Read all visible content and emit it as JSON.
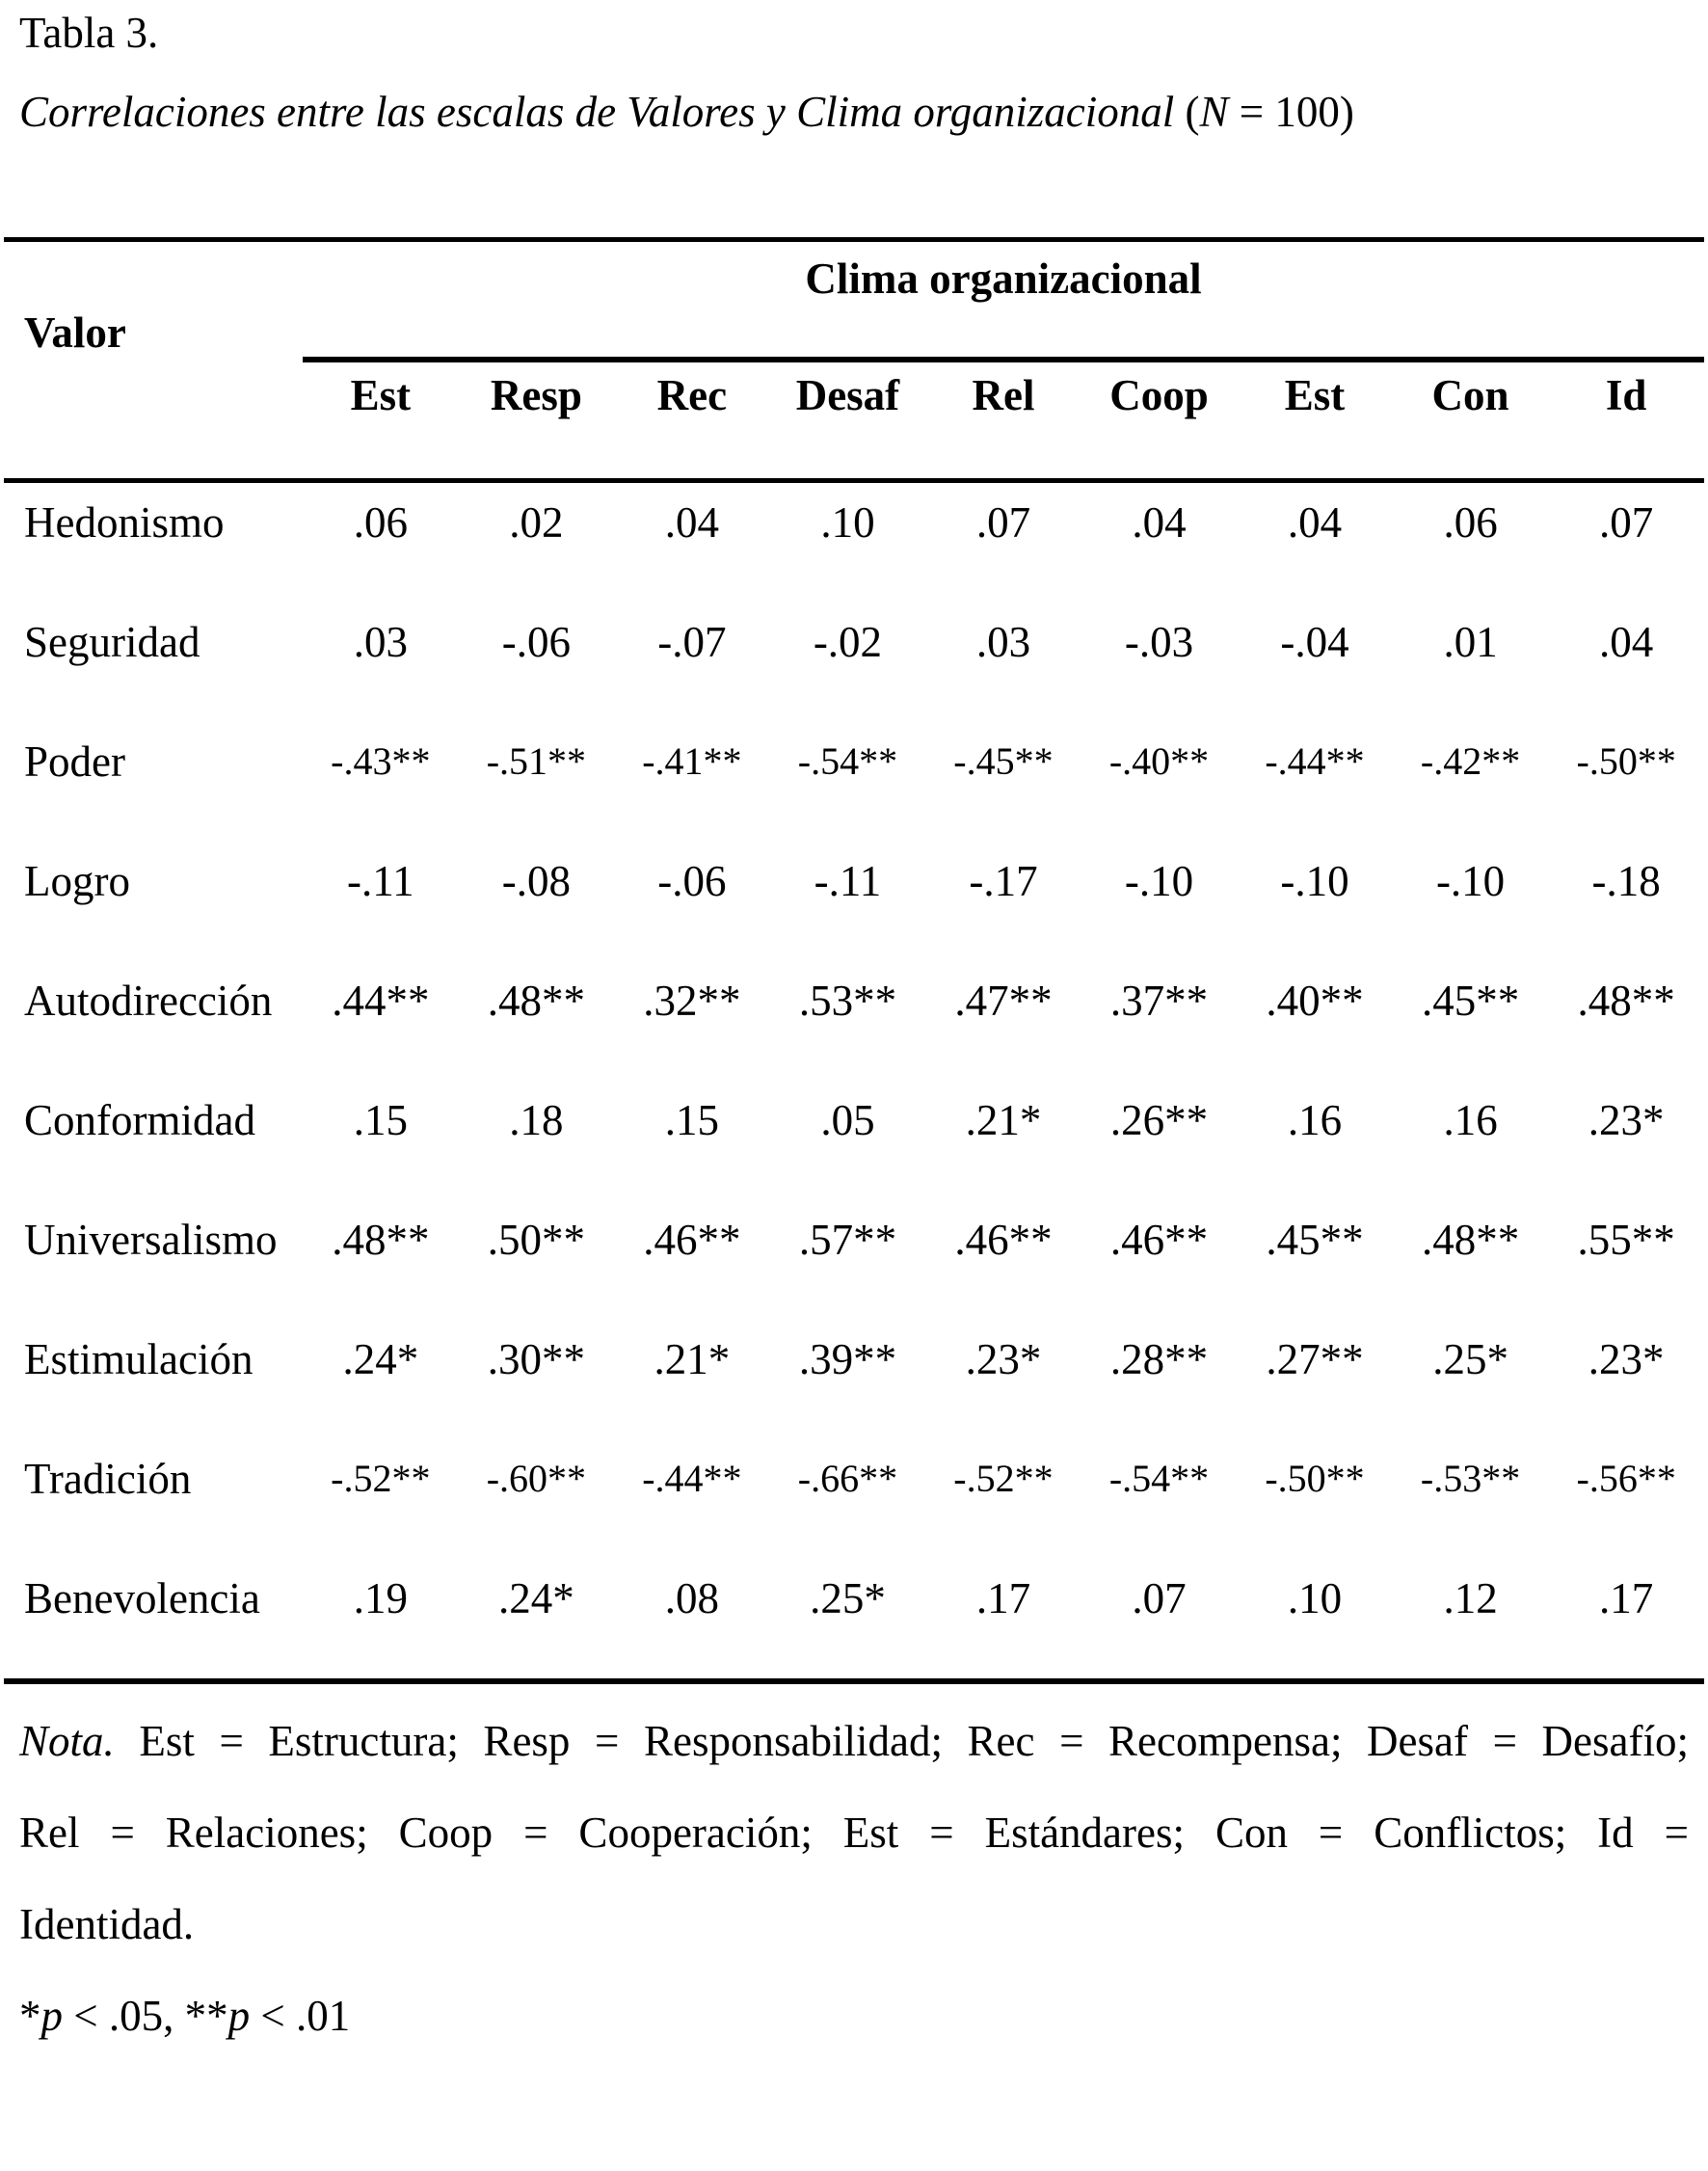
{
  "doc": {
    "label": "Tabla 3.",
    "subtitle_main": "Correlaciones entre las escalas de Valores y Clima organizacional",
    "subtitle_paren_open": " (",
    "subtitle_n": "N",
    "subtitle_paren_rest": " = 100)"
  },
  "table": {
    "spanner": "Clima organizacional",
    "stub_header": "Valor",
    "columns": [
      "Est",
      "Resp",
      "Rec",
      "Desaf",
      "Rel",
      "Coop",
      "Est",
      "Con",
      "Id"
    ],
    "rows": [
      {
        "label": "Hedonismo",
        "values": [
          ".06",
          ".02",
          ".04",
          ".10",
          ".07",
          ".04",
          ".04",
          ".06",
          ".07"
        ]
      },
      {
        "label": "Seguridad",
        "values": [
          ".03",
          "-.06",
          "-.07",
          "-.02",
          ".03",
          "-.03",
          "-.04",
          ".01",
          ".04"
        ]
      },
      {
        "label": "Poder",
        "values": [
          "-.43**",
          "-.51**",
          "-.41**",
          "-.54**",
          "-.45**",
          "-.40**",
          "-.44**",
          "-.42**",
          "-.50**"
        ]
      },
      {
        "label": "Logro",
        "values": [
          "-.11",
          "-.08",
          "-.06",
          "-.11",
          "-.17",
          "-.10",
          "-.10",
          "-.10",
          "-.18"
        ]
      },
      {
        "label": "Autodirección",
        "values": [
          ".44**",
          ".48**",
          ".32**",
          ".53**",
          ".47**",
          ".37**",
          ".40**",
          ".45**",
          ".48**"
        ]
      },
      {
        "label": "Conformidad",
        "values": [
          ".15",
          ".18",
          ".15",
          ".05",
          ".21*",
          ".26**",
          ".16",
          ".16",
          ".23*"
        ]
      },
      {
        "label": "Universalismo",
        "values": [
          ".48**",
          ".50**",
          ".46**",
          ".57**",
          ".46**",
          ".46**",
          ".45**",
          ".48**",
          ".55**"
        ]
      },
      {
        "label": "Estimulación",
        "values": [
          ".24*",
          ".30**",
          ".21*",
          ".39**",
          ".23*",
          ".28**",
          ".27**",
          ".25*",
          ".23*"
        ]
      },
      {
        "label": "Tradición",
        "values": [
          "-.52**",
          "-.60**",
          "-.44**",
          "-.66**",
          "-.52**",
          "-.54**",
          "-.50**",
          "-.53**",
          "-.56**"
        ]
      },
      {
        "label": "Benevolencia",
        "values": [
          ".19",
          ".24*",
          ".08",
          ".25*",
          ".17",
          ".07",
          ".10",
          ".12",
          ".17"
        ]
      }
    ]
  },
  "note": {
    "label": "Nota.",
    "line1": " Est = Estructura; Resp = Responsabilidad; Rec = Recompensa; Desaf = Desafío;",
    "line2": "Rel = Relaciones; Coop = Cooperación; Est = Estándares; Con = Conflictos; Id =",
    "line3": "Identidad.",
    "sig_star1": "*",
    "sig_p1": "p",
    "sig_mid": " < .05, **",
    "sig_p2": "p",
    "sig_end": " < .01"
  }
}
